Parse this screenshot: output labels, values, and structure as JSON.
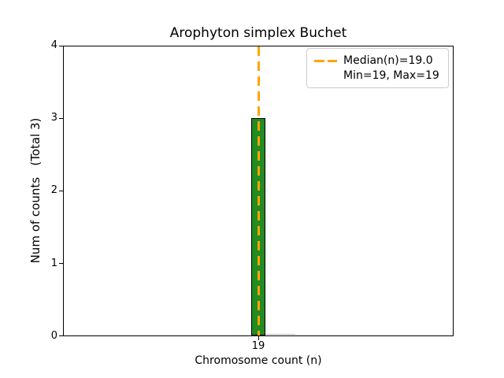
{
  "title": "Arophyton simplex Buchet",
  "axes": {
    "xlabel": "Chromosome count (n)",
    "ylabel": "Num of counts   (Total 3)",
    "yticks": [
      "0",
      "1",
      "2",
      "3",
      "4"
    ],
    "xticks": [
      "19"
    ]
  },
  "legend": {
    "median_label": "Median(n)=19.0",
    "minmax_label": "Min=19, Max=19"
  },
  "colors": {
    "bar_fill": "#228B22",
    "bar_edge": "#000000",
    "median_line": "#FFA500",
    "legend_border": "#cccccc",
    "spine": "#000000"
  },
  "chart_data": {
    "type": "bar",
    "title": "Arophyton simplex Buchet",
    "xlabel": "Chromosome count (n)",
    "ylabel": "Num of counts",
    "ylabel_note": "(Total 3)",
    "categories": [
      19
    ],
    "values": [
      3
    ],
    "total_count": 3,
    "median_n": 19.0,
    "min_n": 19,
    "max_n": 19,
    "ylim": [
      0,
      4
    ],
    "yticks": [
      0,
      1,
      2,
      3,
      4
    ],
    "xticks": [
      19
    ],
    "legend_entries": [
      "Median(n)=19.0",
      "Min=19, Max=19"
    ],
    "legend_position": "upper right",
    "grid": false,
    "bar_color": "#228B22",
    "bar_edge_color": "#000000",
    "median_line_color": "#FFA500"
  }
}
